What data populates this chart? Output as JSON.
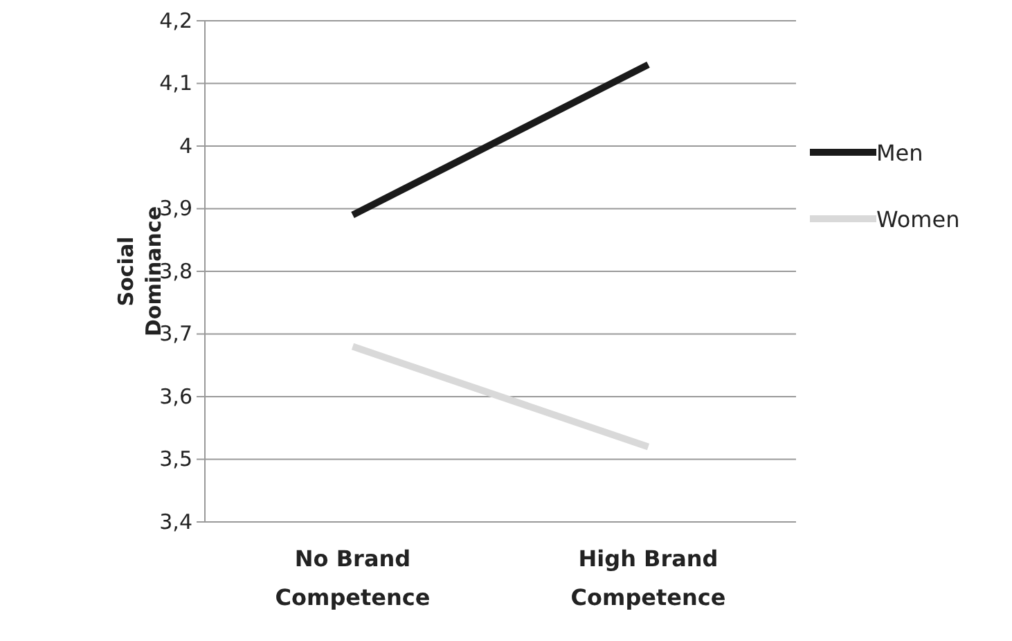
{
  "chart_data": {
    "type": "line",
    "ylabel": "Social Dominance",
    "categories": [
      "No Brand Competence",
      "High Brand Competence"
    ],
    "series": [
      {
        "name": "Men",
        "color": "#1a1a1a",
        "values": [
          3.89,
          4.13
        ]
      },
      {
        "name": "Women",
        "color": "#d9d9d9",
        "values": [
          3.68,
          3.52
        ]
      }
    ],
    "ylim": [
      3.4,
      4.2
    ],
    "yticks": [
      {
        "value": 3.4,
        "label": "3,4"
      },
      {
        "value": 3.5,
        "label": "3,5"
      },
      {
        "value": 3.6,
        "label": "3,6"
      },
      {
        "value": 3.7,
        "label": "3,7"
      },
      {
        "value": 3.8,
        "label": "3,8"
      },
      {
        "value": 3.9,
        "label": "3,9"
      },
      {
        "value": 4,
        "label": "4"
      },
      {
        "value": 4.1,
        "label": "4,1"
      },
      {
        "value": 4.2,
        "label": "4,2"
      }
    ],
    "grid": "y",
    "legend": "right",
    "marker": "none",
    "line_style": "solid"
  }
}
